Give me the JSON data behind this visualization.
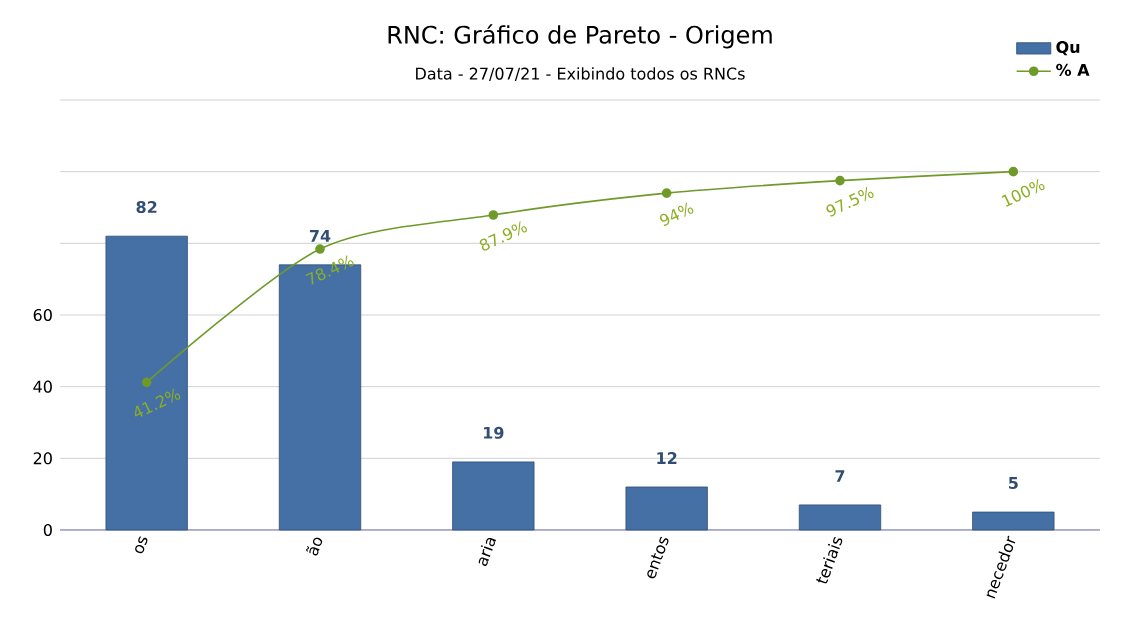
{
  "chart_data": {
    "type": "bar",
    "title": "RNC: Gráfico de Pareto - Origem",
    "subtitle": "Data - 27/07/21 - Exibindo todos os RNCs",
    "categories": [
      "os",
      "ão",
      "aria",
      "entos",
      "teriais",
      "necedor"
    ],
    "series": [
      {
        "name": "Qu",
        "color": "#4470a6",
        "values": [
          82,
          74,
          19,
          12,
          7,
          5
        ],
        "value_labels": [
          "82",
          "74",
          "19",
          "12",
          "7",
          "5"
        ]
      },
      {
        "name": "% A",
        "type": "line",
        "color": "#6f9a2a",
        "values": [
          41.2,
          78.4,
          87.9,
          94,
          97.5,
          100
        ],
        "value_labels": [
          "41.2%",
          "78.4%",
          "87.9%",
          "94%",
          "97.5%",
          "100%"
        ]
      }
    ],
    "ylim": [
      0,
      120
    ],
    "yticks": [
      0,
      20,
      40,
      60,
      {
        "value": 80,
        "label": null
      },
      {
        "value": 100,
        "label": null
      },
      {
        "value": 120,
        "label": null
      }
    ],
    "grid": "y",
    "legend": "top right",
    "marker": "circle"
  }
}
